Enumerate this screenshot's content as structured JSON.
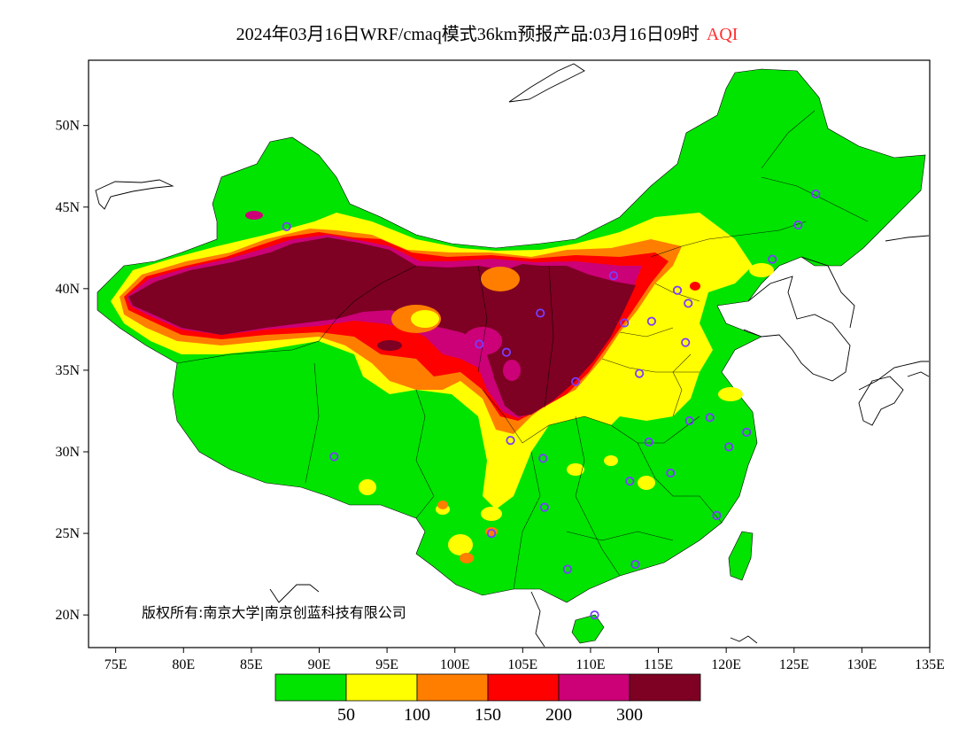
{
  "title": {
    "main": "2024年03月16日WRF/cmaq模式36km预报产品:03月16日09时",
    "variable": "AQI"
  },
  "axes": {
    "lon_range": [
      73,
      135
    ],
    "lat_range": [
      18,
      54
    ],
    "x_ticks": [
      {
        "value": 75,
        "label": "75E"
      },
      {
        "value": 80,
        "label": "80E"
      },
      {
        "value": 85,
        "label": "85E"
      },
      {
        "value": 90,
        "label": "90E"
      },
      {
        "value": 95,
        "label": "95E"
      },
      {
        "value": 100,
        "label": "100E"
      },
      {
        "value": 105,
        "label": "105E"
      },
      {
        "value": 110,
        "label": "110E"
      },
      {
        "value": 115,
        "label": "115E"
      },
      {
        "value": 120,
        "label": "120E"
      },
      {
        "value": 125,
        "label": "125E"
      },
      {
        "value": 130,
        "label": "130E"
      },
      {
        "value": 135,
        "label": "135E"
      }
    ],
    "y_ticks": [
      {
        "value": 20,
        "label": "20N"
      },
      {
        "value": 25,
        "label": "25N"
      },
      {
        "value": 30,
        "label": "30N"
      },
      {
        "value": 35,
        "label": "35N"
      },
      {
        "value": 40,
        "label": "40N"
      },
      {
        "value": 45,
        "label": "45N"
      },
      {
        "value": 50,
        "label": "50N"
      }
    ]
  },
  "colorbar": {
    "colors": [
      "#00e400",
      "#ffff00",
      "#ff7e00",
      "#ff0000",
      "#cc0077",
      "#7e0023"
    ],
    "labels": [
      "50",
      "100",
      "150",
      "200",
      "300"
    ]
  },
  "copyright": "版权所有:南京大学|南京创蓝科技有限公司",
  "city_markers": {
    "color": "#7a3cff",
    "points": [
      [
        87.6,
        43.8
      ],
      [
        91.1,
        29.7
      ],
      [
        101.8,
        36.6
      ],
      [
        103.8,
        36.1
      ],
      [
        106.3,
        38.5
      ],
      [
        104.1,
        30.7
      ],
      [
        106.6,
        26.6
      ],
      [
        106.5,
        29.6
      ],
      [
        108.9,
        34.3
      ],
      [
        111.7,
        40.8
      ],
      [
        112.5,
        37.9
      ],
      [
        114.5,
        38.0
      ],
      [
        116.4,
        39.9
      ],
      [
        117.2,
        39.1
      ],
      [
        113.6,
        34.8
      ],
      [
        117.0,
        36.7
      ],
      [
        114.3,
        30.6
      ],
      [
        112.9,
        28.2
      ],
      [
        115.9,
        28.7
      ],
      [
        117.3,
        31.9
      ],
      [
        118.8,
        32.1
      ],
      [
        120.2,
        30.3
      ],
      [
        121.5,
        31.2
      ],
      [
        119.3,
        26.1
      ],
      [
        113.3,
        23.1
      ],
      [
        108.3,
        22.8
      ],
      [
        110.3,
        20.0
      ],
      [
        102.7,
        25.0
      ],
      [
        123.4,
        41.8
      ],
      [
        125.3,
        43.9
      ],
      [
        126.6,
        45.8
      ]
    ]
  }
}
